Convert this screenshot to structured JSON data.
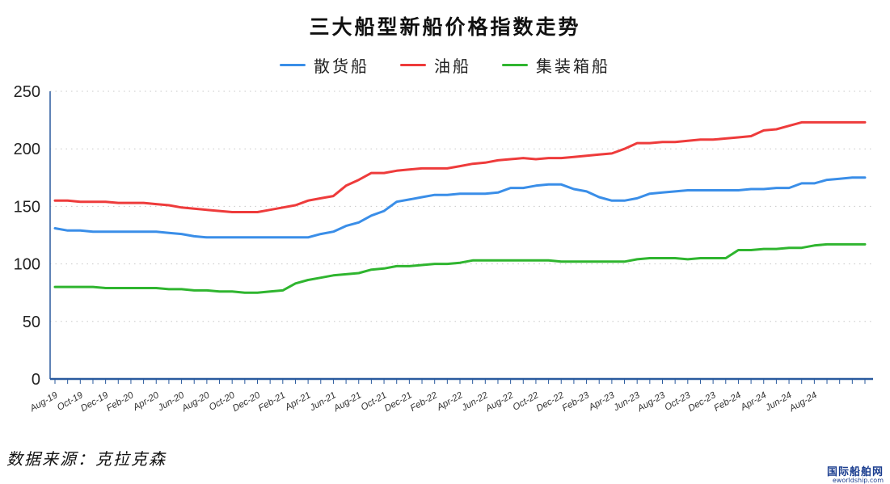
{
  "chart_data": {
    "type": "line",
    "title": "三大船型新船价格指数走势",
    "xlabel": "",
    "ylabel": "",
    "ylim": [
      0,
      250
    ],
    "yticks": [
      0,
      50,
      100,
      150,
      200,
      250
    ],
    "grid": "horizontal dotted",
    "legend_position": "top-center",
    "x_tick_labels": [
      "Aug-19",
      "Oct-19",
      "Dec-19",
      "Feb-20",
      "Apr-20",
      "Jun-20",
      "Aug-20",
      "Oct-20",
      "Dec-20",
      "Feb-21",
      "Apr-21",
      "Jun-21",
      "Aug-21",
      "Oct-21",
      "Dec-21",
      "Feb-22",
      "Apr-22",
      "Jun-22",
      "Aug-22",
      "Oct-22",
      "Dec-22",
      "Feb-23",
      "Apr-23",
      "Jun-23",
      "Aug-23",
      "Oct-23",
      "Dec-23",
      "Feb-24",
      "Apr-24",
      "Jun-24",
      "Aug-24"
    ],
    "series": [
      {
        "name": "散货船",
        "color": "#3a8ee8",
        "values": [
          131,
          129,
          129,
          128,
          128,
          128,
          128,
          128,
          128,
          127,
          126,
          124,
          123,
          123,
          123,
          123,
          123,
          123,
          123,
          123,
          123,
          126,
          128,
          133,
          136,
          142,
          146,
          154,
          156,
          158,
          160,
          160,
          161,
          161,
          161,
          162,
          166,
          166,
          168,
          169,
          169,
          165,
          163,
          158,
          155,
          155,
          157,
          161,
          162,
          163,
          164,
          164,
          164,
          164,
          164,
          165,
          165,
          166,
          166,
          170,
          170,
          173,
          174,
          175,
          175
        ]
      },
      {
        "name": "油船",
        "color": "#ee3b3b",
        "values": [
          155,
          155,
          154,
          154,
          154,
          153,
          153,
          153,
          152,
          151,
          149,
          148,
          147,
          146,
          145,
          145,
          145,
          147,
          149,
          151,
          155,
          157,
          159,
          168,
          173,
          179,
          179,
          181,
          182,
          183,
          183,
          183,
          185,
          187,
          188,
          190,
          191,
          192,
          191,
          192,
          192,
          193,
          194,
          195,
          196,
          200,
          205,
          205,
          206,
          206,
          207,
          208,
          208,
          209,
          210,
          211,
          216,
          217,
          220,
          223,
          223,
          223,
          223,
          223,
          223
        ]
      },
      {
        "name": "集装箱船",
        "color": "#2fb52f",
        "values": [
          80,
          80,
          80,
          80,
          79,
          79,
          79,
          79,
          79,
          78,
          78,
          77,
          77,
          76,
          76,
          75,
          75,
          76,
          77,
          83,
          86,
          88,
          90,
          91,
          92,
          95,
          96,
          98,
          98,
          99,
          100,
          100,
          101,
          103,
          103,
          103,
          103,
          103,
          103,
          103,
          102,
          102,
          102,
          102,
          102,
          102,
          104,
          105,
          105,
          105,
          104,
          105,
          105,
          105,
          112,
          112,
          113,
          113,
          114,
          114,
          116,
          117,
          117,
          117,
          117
        ]
      }
    ]
  },
  "source_text": "数据来源：克拉克森",
  "watermark": {
    "main": "国际船舶网",
    "sub": "eworldship.com"
  }
}
